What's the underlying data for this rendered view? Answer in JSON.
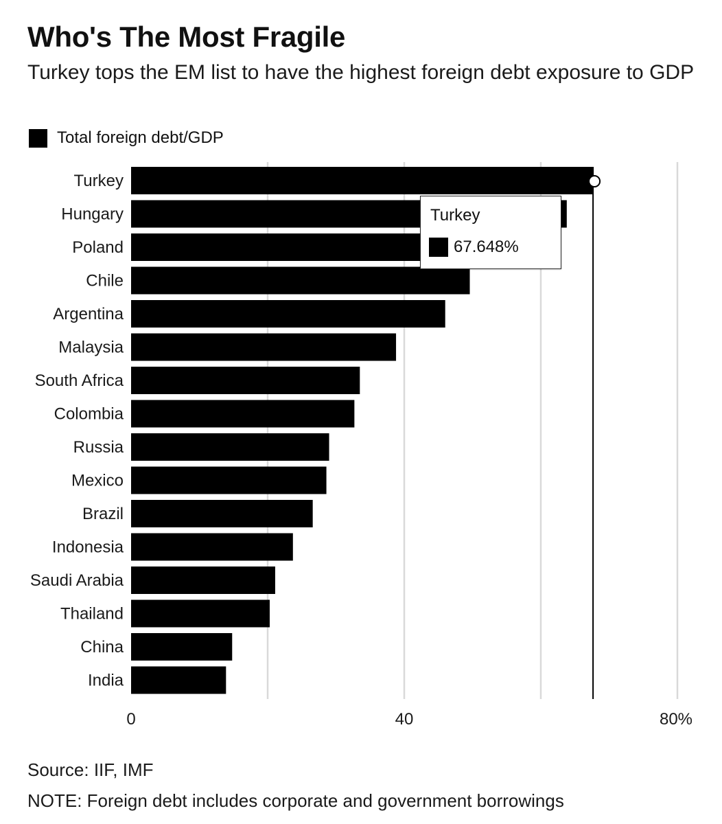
{
  "header": {
    "title": "Who's The Most Fragile",
    "subtitle": "Turkey tops the EM list to have the highest foreign debt exposure to GDP"
  },
  "legend": {
    "label": "Total foreign debt/GDP"
  },
  "tooltip": {
    "title": "Turkey",
    "value": "67.648%"
  },
  "footer": {
    "source": "Source: IIF, IMF",
    "note": "NOTE: Foreign debt includes corporate and government borrowings"
  },
  "colors": {
    "bar": "#000000",
    "grid": "#d9d9d9",
    "hover_line": "#000000"
  },
  "chart_data": {
    "type": "bar",
    "orientation": "horizontal",
    "title": "Who's The Most Fragile",
    "subtitle": "Turkey tops the EM list to have the highest foreign debt exposure to GDP",
    "xlabel": "",
    "ylabel": "",
    "categories": [
      "Turkey",
      "Hungary",
      "Poland",
      "Chile",
      "Argentina",
      "Malaysia",
      "South Africa",
      "Colombia",
      "Russia",
      "Mexico",
      "Brazil",
      "Indonesia",
      "Saudi Arabia",
      "Thailand",
      "China",
      "India"
    ],
    "series": [
      {
        "name": "Total foreign debt/GDP",
        "values": [
          67.648,
          63.8,
          53.0,
          49.6,
          46.0,
          38.8,
          33.5,
          32.7,
          29.0,
          28.6,
          26.6,
          23.7,
          21.1,
          20.3,
          14.8,
          13.9
        ]
      }
    ],
    "xlim": [
      0,
      80
    ],
    "x_ticks": [
      0,
      40,
      80
    ],
    "x_tick_labels": [
      "0",
      "40",
      "80%"
    ],
    "gridlines_at": [
      0,
      20,
      40,
      60,
      80
    ],
    "grid": true,
    "legend_position": "top-left",
    "highlight": {
      "category": "Turkey",
      "value": 67.648
    }
  }
}
